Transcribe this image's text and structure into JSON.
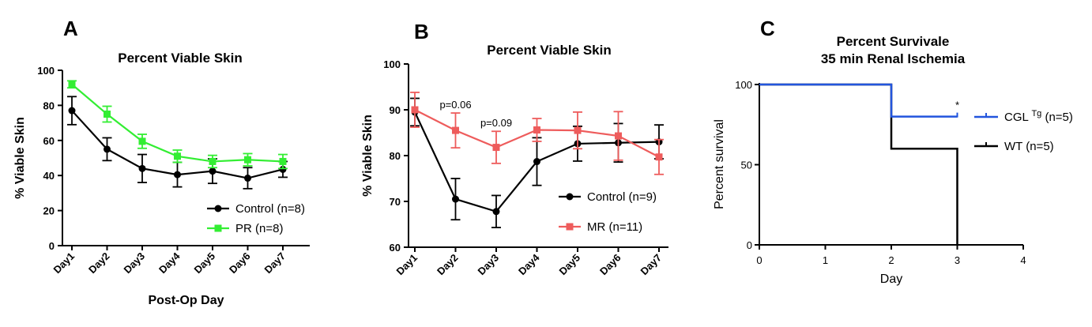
{
  "chart_data": [
    {
      "panel_label": "A",
      "type": "line",
      "title": "Percent Viable Skin",
      "xlabel": "Post-Op Day",
      "ylabel": "% Viable Skin",
      "categories": [
        "Day1",
        "Day2",
        "Day3",
        "Day4",
        "Day5",
        "Day6",
        "Day7"
      ],
      "ylim": [
        0,
        100
      ],
      "yticks": [
        0,
        20,
        40,
        60,
        80,
        100
      ],
      "legend_position": "bottom-right",
      "series": [
        {
          "name": "Control (n=8)",
          "color": "#000000",
          "marker": "circle",
          "values": [
            77,
            55,
            44,
            40.5,
            42.5,
            38.5,
            43.5
          ],
          "errors": [
            8,
            6.5,
            8,
            7,
            7,
            6,
            4.5
          ]
        },
        {
          "name": "PR (n=8)",
          "color": "#33ee33",
          "marker": "square",
          "values": [
            92,
            75,
            59.5,
            51,
            48,
            49,
            48
          ],
          "errors": [
            2,
            4.5,
            4,
            3.5,
            3.5,
            3.5,
            4
          ]
        }
      ]
    },
    {
      "panel_label": "B",
      "type": "line",
      "title": "Percent Viable Skin",
      "xlabel": "",
      "ylabel": "% Viable Skin",
      "categories": [
        "Day1",
        "Day2",
        "Day3",
        "Day4",
        "Day5",
        "Day6",
        "Day7"
      ],
      "ylim": [
        60,
        100
      ],
      "yticks": [
        60,
        70,
        80,
        90,
        100
      ],
      "legend_position": "bottom-right",
      "annotations": [
        {
          "text": "p=0.06",
          "x": "Day2"
        },
        {
          "text": "p=0.09",
          "x": "Day3"
        }
      ],
      "series": [
        {
          "name": "Control (n=9)",
          "color": "#000000",
          "marker": "circle",
          "values": [
            89.5,
            70.5,
            67.8,
            78.7,
            82.6,
            82.8,
            83
          ],
          "errors": [
            3,
            4.5,
            3.5,
            5.2,
            3.8,
            4.2,
            3.7
          ]
        },
        {
          "name": "MR (n=11)",
          "color": "#ee5c5c",
          "marker": "square",
          "values": [
            90,
            85.5,
            81.8,
            85.6,
            85.5,
            84.3,
            79.7
          ],
          "errors": [
            3.8,
            3.8,
            3.5,
            2.5,
            4,
            5.3,
            3.8
          ]
        }
      ]
    },
    {
      "panel_label": "C",
      "type": "line",
      "step": true,
      "title": "Percent Survivale",
      "subtitle": "35 min Renal Ischemia",
      "xlabel": "Day",
      "ylabel": "Percent survival",
      "xlim": [
        0,
        4
      ],
      "xticks": [
        0,
        1,
        2,
        3,
        4
      ],
      "ylim": [
        0,
        100
      ],
      "yticks": [
        0,
        50,
        100
      ],
      "legend_position": "right",
      "annotations": [
        {
          "text": "*",
          "x": 3,
          "y": 80
        }
      ],
      "series": [
        {
          "name": "CGL",
          "name_superscript": "Tg",
          "name_suffix": "(n=5)",
          "color": "#2255dd",
          "steps": [
            [
              0,
              100
            ],
            [
              2,
              100
            ],
            [
              2,
              80
            ],
            [
              3,
              80
            ]
          ]
        },
        {
          "name": "WT (n=5)",
          "color": "#000000",
          "steps": [
            [
              0,
              100
            ],
            [
              2,
              100
            ],
            [
              2,
              60
            ],
            [
              3,
              60
            ],
            [
              3,
              0
            ]
          ]
        }
      ]
    }
  ]
}
